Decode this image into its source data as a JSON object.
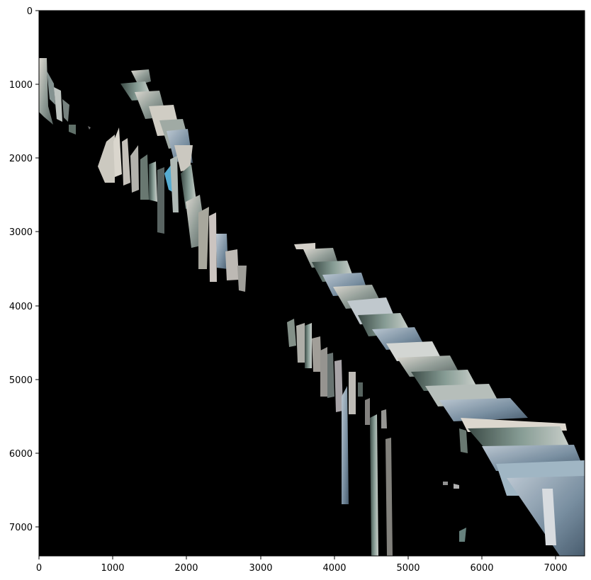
{
  "figure": {
    "x_ticks": [
      "0",
      "1000",
      "2000",
      "3000",
      "4000",
      "5000",
      "6000",
      "7000"
    ],
    "y_ticks": [
      "0",
      "1000",
      "2000",
      "3000",
      "4000",
      "5000",
      "6000",
      "7000"
    ],
    "x_tick_values": [
      0,
      1000,
      2000,
      3000,
      4000,
      5000,
      6000,
      7000
    ],
    "y_tick_values": [
      0,
      1000,
      2000,
      3000,
      4000,
      5000,
      6000,
      7000
    ],
    "xlim": [
      0,
      7400
    ],
    "ylim": [
      7400,
      0
    ],
    "y_inverted": true,
    "image_background_color": "#000000",
    "content": "stitched image mosaic fragments on black background"
  }
}
